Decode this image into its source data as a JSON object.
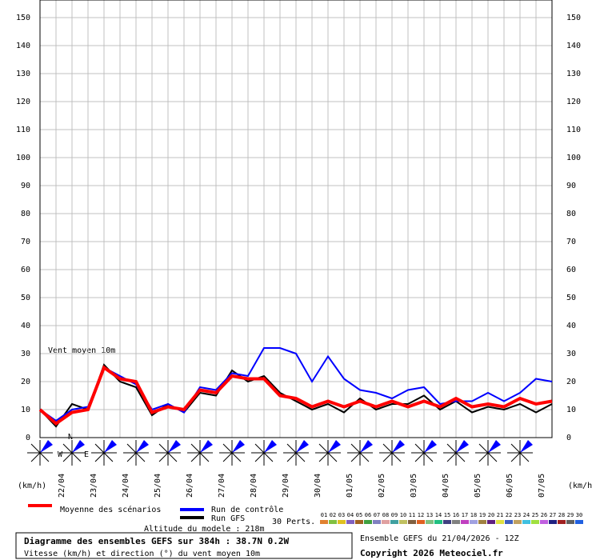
{
  "chart_data": {
    "type": "line",
    "annotation": "Vent moyen 10m",
    "y_unit_left": "(km/h)",
    "y_unit_right": "(km/h)",
    "x": [
      0,
      12,
      24,
      36,
      48,
      60,
      72,
      84,
      96,
      108,
      120,
      132,
      144,
      156,
      168,
      180,
      192,
      204,
      216,
      228,
      240,
      252,
      264,
      276,
      288,
      300,
      312,
      324,
      336,
      348,
      360,
      372,
      384
    ],
    "xlim": [
      0,
      384
    ],
    "xticks": [
      {
        "value": 12,
        "label": "22/04"
      },
      {
        "value": 36,
        "label": "23/04"
      },
      {
        "value": 60,
        "label": "24/04"
      },
      {
        "value": 84,
        "label": "25/04"
      },
      {
        "value": 108,
        "label": "26/04"
      },
      {
        "value": 132,
        "label": "27/04"
      },
      {
        "value": 156,
        "label": "28/04"
      },
      {
        "value": 180,
        "label": "29/04"
      },
      {
        "value": 204,
        "label": "30/04"
      },
      {
        "value": 228,
        "label": "01/05"
      },
      {
        "value": 252,
        "label": "02/05"
      },
      {
        "value": 276,
        "label": "03/05"
      },
      {
        "value": 300,
        "label": "04/05"
      },
      {
        "value": 324,
        "label": "05/05"
      },
      {
        "value": 348,
        "label": "06/05"
      },
      {
        "value": 372,
        "label": "07/05"
      }
    ],
    "ylim": [
      0,
      150
    ],
    "yticks": [
      0,
      10,
      20,
      30,
      40,
      50,
      60,
      70,
      80,
      90,
      100,
      110,
      120,
      130,
      140,
      150
    ],
    "grid": true,
    "series": [
      {
        "name": "Moyenne des scénarios",
        "color": "#ff0000",
        "values": [
          10,
          5,
          9,
          10,
          25,
          21,
          20,
          9,
          11,
          10,
          17,
          16,
          22,
          21,
          21,
          15,
          14,
          11,
          13,
          11,
          13,
          11,
          13,
          11,
          13,
          11,
          14,
          11,
          12,
          11,
          14,
          12,
          13
        ]
      },
      {
        "name": "Run de contrôle",
        "color": "#0000ff",
        "values": [
          10,
          6,
          10,
          11,
          25,
          22,
          19,
          10,
          12,
          9,
          18,
          17,
          23,
          22,
          32,
          32,
          30,
          20,
          29,
          21,
          17,
          16,
          14,
          17,
          18,
          12,
          13,
          13,
          16,
          13,
          16,
          21,
          20
        ]
      },
      {
        "name": "Run GFS",
        "color": "#000000",
        "values": [
          10,
          4,
          12,
          10,
          26,
          20,
          18,
          8,
          12,
          9,
          16,
          15,
          24,
          20,
          22,
          16,
          13,
          10,
          12,
          9,
          14,
          10,
          12,
          12,
          15,
          10,
          13,
          9,
          11,
          10,
          12,
          9,
          12
        ]
      }
    ],
    "compass_labels": [
      "N",
      "W",
      "E"
    ],
    "perturbations_label": "30 Perts.",
    "perturbations": [
      {
        "name": "01",
        "color": "#e08030"
      },
      {
        "name": "02",
        "color": "#80c040"
      },
      {
        "name": "03",
        "color": "#e0c020"
      },
      {
        "name": "04",
        "color": "#8060c0"
      },
      {
        "name": "05",
        "color": "#a06020"
      },
      {
        "name": "06",
        "color": "#40a040"
      },
      {
        "name": "07",
        "color": "#8080c0"
      },
      {
        "name": "08",
        "color": "#e0a0a0"
      },
      {
        "name": "09",
        "color": "#40a0a0"
      },
      {
        "name": "10",
        "color": "#c0c060"
      },
      {
        "name": "11",
        "color": "#806040"
      },
      {
        "name": "12",
        "color": "#e06020"
      },
      {
        "name": "13",
        "color": "#80c080"
      },
      {
        "name": "14",
        "color": "#20c080"
      },
      {
        "name": "15",
        "color": "#404080"
      },
      {
        "name": "16",
        "color": "#808080"
      },
      {
        "name": "17",
        "color": "#c040c0"
      },
      {
        "name": "18",
        "color": "#a0a0e0"
      },
      {
        "name": "19",
        "color": "#a08040"
      },
      {
        "name": "20",
        "color": "#602080"
      },
      {
        "name": "21",
        "color": "#e0e040"
      },
      {
        "name": "22",
        "color": "#4060c0"
      },
      {
        "name": "23",
        "color": "#c0a060"
      },
      {
        "name": "24",
        "color": "#40c0e0"
      },
      {
        "name": "25",
        "color": "#a0e040"
      },
      {
        "name": "26",
        "color": "#c060e0"
      },
      {
        "name": "27",
        "color": "#202080"
      },
      {
        "name": "28",
        "color": "#a02020"
      },
      {
        "name": "29",
        "color": "#606060"
      },
      {
        "name": "30",
        "color": "#2060e0"
      }
    ],
    "altitude": "Altitude du modele : 218m",
    "box_title": "Diagramme des ensembles GEFS sur 384h : 38.7N 0.2W",
    "box_subtitle": "Vitesse (km/h) et direction (°) du vent moyen 10m",
    "run_info": "Ensemble GEFS du 21/04/2026 - 12Z",
    "copyright": "Copyright 2026 Meteociel.fr"
  }
}
